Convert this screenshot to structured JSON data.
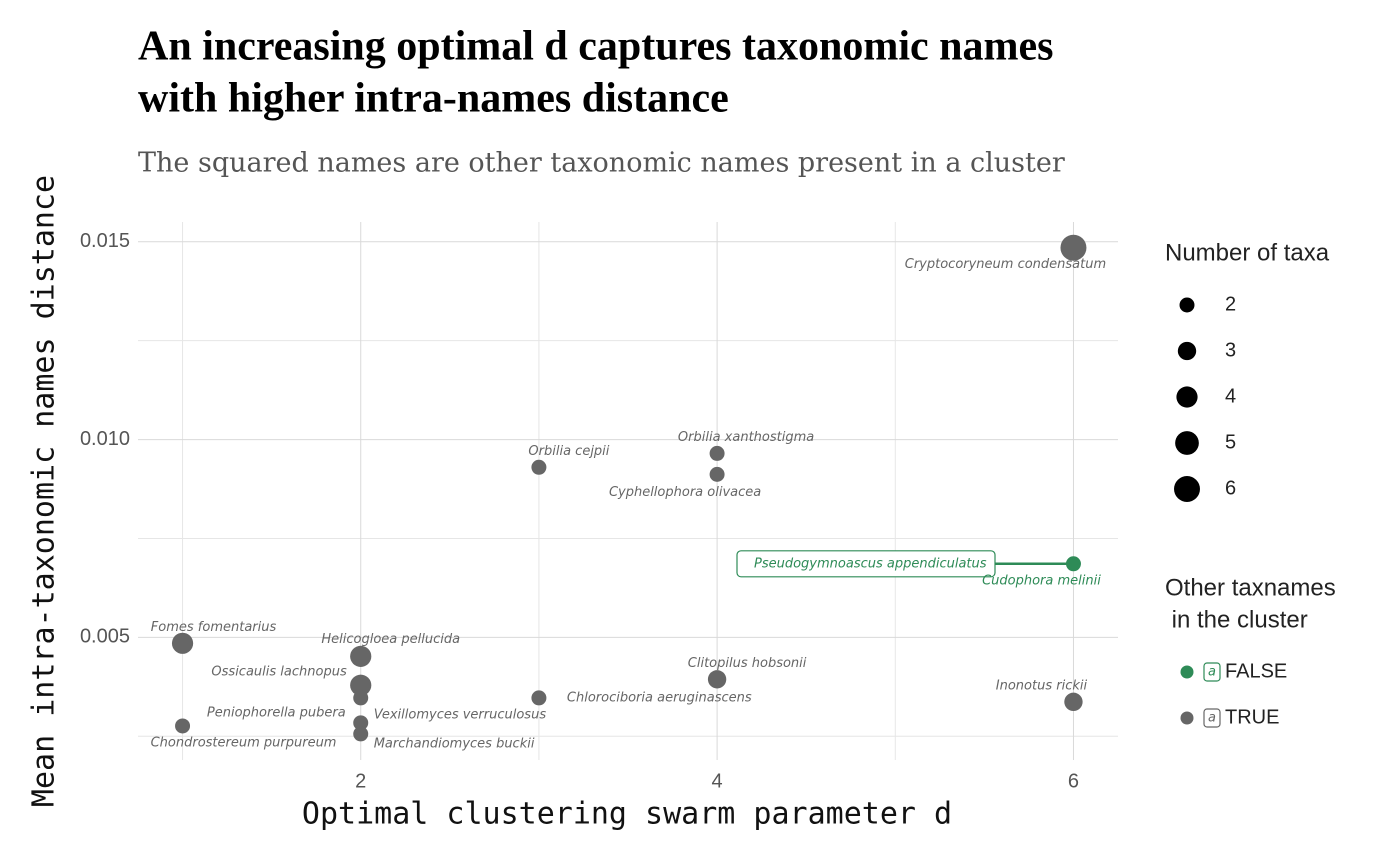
{
  "chart_data": {
    "type": "scatter",
    "title": "An increasing optimal d captures taxonomic names",
    "title_line2": "with higher intra-names distance",
    "subtitle": "The squared names are other taxonomic names present in a cluster",
    "x_label": "Optimal clustering swarm parameter d",
    "y_label": "Mean intra-taxonomic names distance",
    "xlim": [
      0.75,
      6.25
    ],
    "xticks": [
      2,
      4,
      6
    ],
    "ylim": [
      0.0019,
      0.0155
    ],
    "yticks": [
      0.005,
      {
        "value": 0.01,
        "label": "0.010"
      },
      0.015
    ],
    "grid": true,
    "size_legend": {
      "title": "Number of taxa",
      "values": [
        2,
        3,
        4,
        5,
        6
      ]
    },
    "color_legend": {
      "title": "Other taxnames",
      "title_line2": " in the cluster",
      "key_glyph": "a"
    },
    "series": [
      {
        "name": "FALSE",
        "color": "#2e8b57",
        "x": [
          6
        ],
        "values": [
          0.00686
        ],
        "sizes": [
          2
        ],
        "labels": [
          "Cudophora melinii"
        ],
        "other_names": [
          "Pseudogymnoascus appendiculatus"
        ]
      },
      {
        "name": "TRUE",
        "color": "#666666",
        "x": [
          6,
          3,
          4,
          4,
          1,
          2,
          2,
          2,
          2,
          2,
          1,
          3,
          4,
          6
        ],
        "values": [
          0.01485,
          0.0093,
          0.00965,
          0.00912,
          0.00485,
          0.00452,
          0.00379,
          0.00347,
          0.00284,
          0.00256,
          0.00276,
          0.00347,
          0.00394,
          0.00337
        ],
        "sizes": [
          6,
          2,
          2,
          2,
          4,
          4,
          4,
          2,
          2,
          2,
          2,
          2,
          3,
          3
        ],
        "labels": [
          "Cryptocoryneum condensatum",
          "Orbilia cejpii",
          "Orbilia xanthostigma",
          "Cyphellophora olivacea",
          "Fomes fomentarius",
          "Helicogloea pellucida",
          "Ossicaulis lachnopus",
          "Peniophorella pubera",
          "Vexillomyces verruculosus",
          "Marchandiomyces buckii",
          "Chondrostereum purpureum",
          "Chlorociboria aeruginascens",
          "Clitopilus hobsonii",
          "Inonotus rickii"
        ]
      }
    ]
  }
}
